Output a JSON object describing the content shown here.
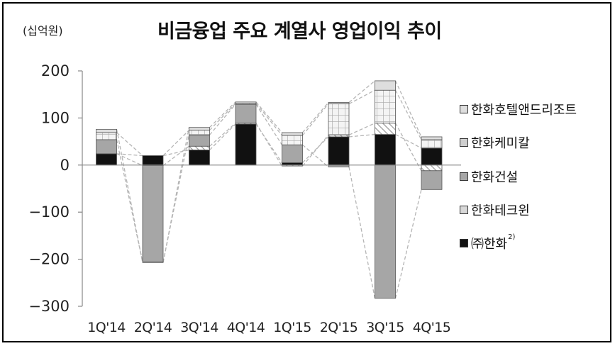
{
  "unit_label": "(십억원)",
  "chart_data": {
    "type": "bar",
    "stacked": true,
    "title": "비금융업 주요 계열사 영업이익 추이",
    "ylabel": "(십억원)",
    "xlabel": "",
    "categories": [
      "1Q'14",
      "2Q'14",
      "3Q'14",
      "4Q'14",
      "1Q'15",
      "2Q'15",
      "3Q'15",
      "4Q'15"
    ],
    "ylim": [
      -300,
      200
    ],
    "yticks": [
      200,
      100,
      0,
      -100,
      -200,
      -300
    ],
    "ytick_labels": [
      "200",
      "100",
      "0",
      "−100",
      "−200",
      "−300"
    ],
    "grid": false,
    "legend_position": "right",
    "series": [
      {
        "name": "(주)한화",
        "color": "#111111",
        "pattern": "solid",
        "values": [
          24,
          20,
          32,
          87,
          5,
          60,
          65,
          36
        ]
      },
      {
        "name": "한화테크윈",
        "color": "#dcdcdc",
        "pattern": "hatch",
        "values": [
          0,
          -1,
          8,
          2,
          -2,
          4,
          24,
          -12
        ]
      },
      {
        "name": "한화건설",
        "color": "#a6a6a6",
        "pattern": "solid",
        "values": [
          30,
          -205,
          24,
          40,
          38,
          -4,
          -283,
          -40
        ]
      },
      {
        "name": "한화케미칼",
        "color": "#e6e6e6",
        "pattern": "grid",
        "values": [
          15,
          0,
          10,
          2,
          20,
          66,
          70,
          18
        ]
      },
      {
        "name": "한화호텔앤드리조트",
        "color": "#dedede",
        "pattern": "light",
        "values": [
          7,
          -1,
          6,
          3,
          6,
          3,
          20,
          6
        ]
      }
    ]
  },
  "legend": {
    "items": [
      {
        "label": "한화호텔앤드리조트",
        "sup": ""
      },
      {
        "label": "한화케미칼",
        "sup": ""
      },
      {
        "label": "한화건설",
        "sup": ""
      },
      {
        "label": "한화테크윈",
        "sup": ""
      },
      {
        "label": "㈜한화",
        "sup": "2)"
      }
    ]
  }
}
